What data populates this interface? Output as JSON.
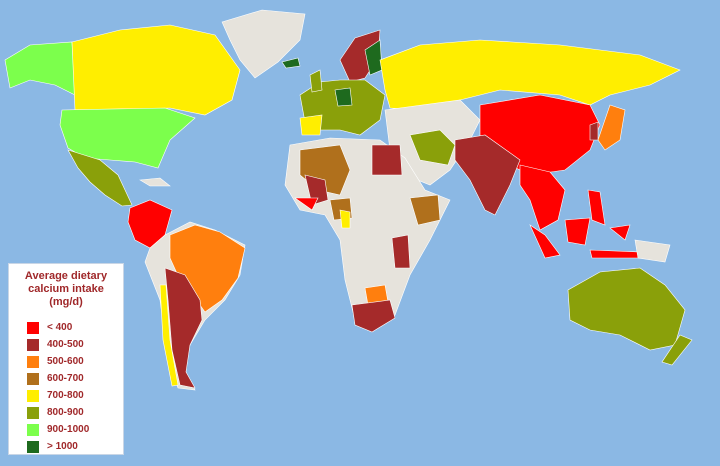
{
  "legend": {
    "title_line1": "Average dietary",
    "title_line2": "calcium intake (mg/d)",
    "items": [
      {
        "label": "< 400",
        "color": "#ff0000"
      },
      {
        "label": "400-500",
        "color": "#a52a2a"
      },
      {
        "label": "500-600",
        "color": "#ff7f0e"
      },
      {
        "label": "600-700",
        "color": "#b0701c"
      },
      {
        "label": "700-800",
        "color": "#ffee00"
      },
      {
        "label": "800-900",
        "color": "#8aa00a"
      },
      {
        "label": "900-1000",
        "color": "#7cff4c"
      },
      {
        "label": "> 1000",
        "color": "#1e6a1e"
      }
    ]
  },
  "colors": {
    "ocean": "#8bb8e4",
    "no_data": "#e6e3dc"
  }
}
